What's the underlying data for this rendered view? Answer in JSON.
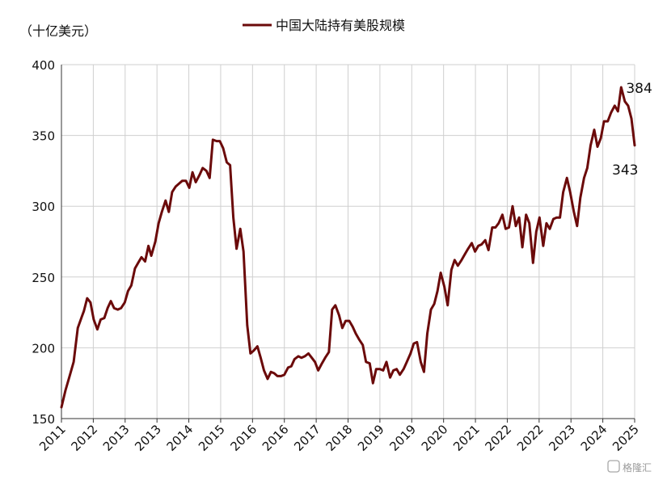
{
  "chart_data": {
    "type": "line",
    "unit_label": "（十亿美元）",
    "legend": "中国大陆持有美股规模",
    "ylim": [
      150,
      400
    ],
    "yticks": [
      150,
      200,
      250,
      300,
      350,
      400
    ],
    "xlim": [
      2011.0,
      2025.04
    ],
    "xtick_labels": [
      "2011",
      "2012",
      "2013",
      "2013",
      "2014",
      "2015",
      "2016",
      "2016",
      "2017",
      "2018",
      "2019",
      "2019",
      "2020",
      "2021",
      "2022",
      "2022",
      "2023",
      "2024",
      "2025"
    ],
    "grid": true,
    "color": "#6B0A0A",
    "annotations": [
      {
        "text": "384",
        "value": 384
      },
      {
        "text": "343",
        "value": 343
      }
    ],
    "watermark": "格隆汇",
    "series": [
      {
        "x": [
          2011.0,
          2011.1,
          2011.2,
          2011.3,
          2011.4,
          2011.5,
          2011.55,
          2011.63,
          2011.71,
          2011.79,
          2011.88,
          2011.96,
          2012.05,
          2012.13,
          2012.21,
          2012.29,
          2012.38,
          2012.46,
          2012.55,
          2012.63,
          2012.71,
          2012.8,
          2012.88,
          2012.96,
          2013.05,
          2013.13,
          2013.2,
          2013.3,
          2013.38,
          2013.46,
          2013.55,
          2013.63,
          2013.71,
          2013.8,
          2013.88,
          2013.96,
          2014.05,
          2014.13,
          2014.21,
          2014.29,
          2014.38,
          2014.46,
          2014.55,
          2014.63,
          2014.71,
          2014.8,
          2014.88,
          2014.96,
          2015.05,
          2015.13,
          2015.21,
          2015.29,
          2015.38,
          2015.46,
          2015.55,
          2015.63,
          2015.71,
          2015.8,
          2015.88,
          2015.96,
          2016.05,
          2016.13,
          2016.21,
          2016.29,
          2016.38,
          2016.46,
          2016.55,
          2016.63,
          2016.71,
          2016.8,
          2016.88,
          2016.96,
          2017.05,
          2017.13,
          2017.21,
          2017.29,
          2017.38,
          2017.46,
          2017.55,
          2017.63,
          2017.71,
          2017.8,
          2017.88,
          2017.96,
          2018.05,
          2018.13,
          2018.21,
          2018.29,
          2018.38,
          2018.46,
          2018.55,
          2018.63,
          2018.71,
          2018.8,
          2018.88,
          2018.96,
          2019.05,
          2019.13,
          2019.21,
          2019.29,
          2019.38,
          2019.46,
          2019.55,
          2019.63,
          2019.71,
          2019.8,
          2019.88,
          2019.96,
          2020.05,
          2020.13,
          2020.21,
          2020.29,
          2020.38,
          2020.46,
          2020.55,
          2020.63,
          2020.71,
          2020.8,
          2020.88,
          2020.96,
          2021.05,
          2021.13,
          2021.21,
          2021.29,
          2021.38,
          2021.46,
          2021.55,
          2021.63,
          2021.71,
          2021.8,
          2021.88,
          2021.96,
          2022.05,
          2022.13,
          2022.21,
          2022.29,
          2022.38,
          2022.46,
          2022.55,
          2022.63,
          2022.71,
          2022.8,
          2022.88,
          2022.96,
          2023.05,
          2023.13,
          2023.21,
          2023.29,
          2023.38,
          2023.46,
          2023.55,
          2023.63,
          2023.71,
          2023.8,
          2023.88,
          2023.96,
          2024.05,
          2024.13,
          2024.21,
          2024.29,
          2024.38,
          2024.46,
          2024.55,
          2024.63,
          2024.71,
          2024.8,
          2024.88,
          2024.96,
          2025.04
        ],
        "values": [
          158,
          170,
          180,
          190,
          214,
          222,
          226,
          235,
          232,
          220,
          213,
          220,
          221,
          228,
          233,
          228,
          227,
          228,
          232,
          240,
          244,
          256,
          260,
          264,
          261,
          272,
          265,
          275,
          288,
          296,
          304,
          296,
          310,
          314,
          316,
          318,
          318,
          313,
          324,
          317,
          322,
          327,
          325,
          320,
          347,
          346,
          346,
          341,
          331,
          329,
          292,
          270,
          284,
          268,
          216,
          196,
          198,
          201,
          193,
          184,
          178,
          183,
          182,
          180,
          180,
          181,
          186,
          187,
          192,
          194,
          193,
          194,
          196,
          193,
          190,
          184,
          189,
          193,
          197,
          227,
          230,
          223,
          214,
          219,
          219,
          215,
          210,
          206,
          202,
          190,
          189,
          175,
          185,
          185,
          184,
          190,
          179,
          184,
          185,
          181,
          185,
          190,
          196,
          203,
          204,
          190,
          183,
          210,
          227,
          231,
          240,
          253,
          243,
          230,
          255,
          262,
          258,
          262,
          266,
          270,
          274,
          268,
          272,
          273,
          276,
          269,
          285,
          285,
          288,
          294,
          284,
          285,
          300,
          286,
          292,
          271,
          294,
          288,
          260,
          282,
          292,
          272,
          288,
          284,
          291,
          292,
          292,
          310,
          320,
          310,
          296,
          286,
          306,
          320,
          327,
          343,
          354,
          342,
          348,
          360,
          360,
          366,
          371,
          367,
          384,
          374,
          371,
          362,
          343
        ]
      }
    ]
  }
}
